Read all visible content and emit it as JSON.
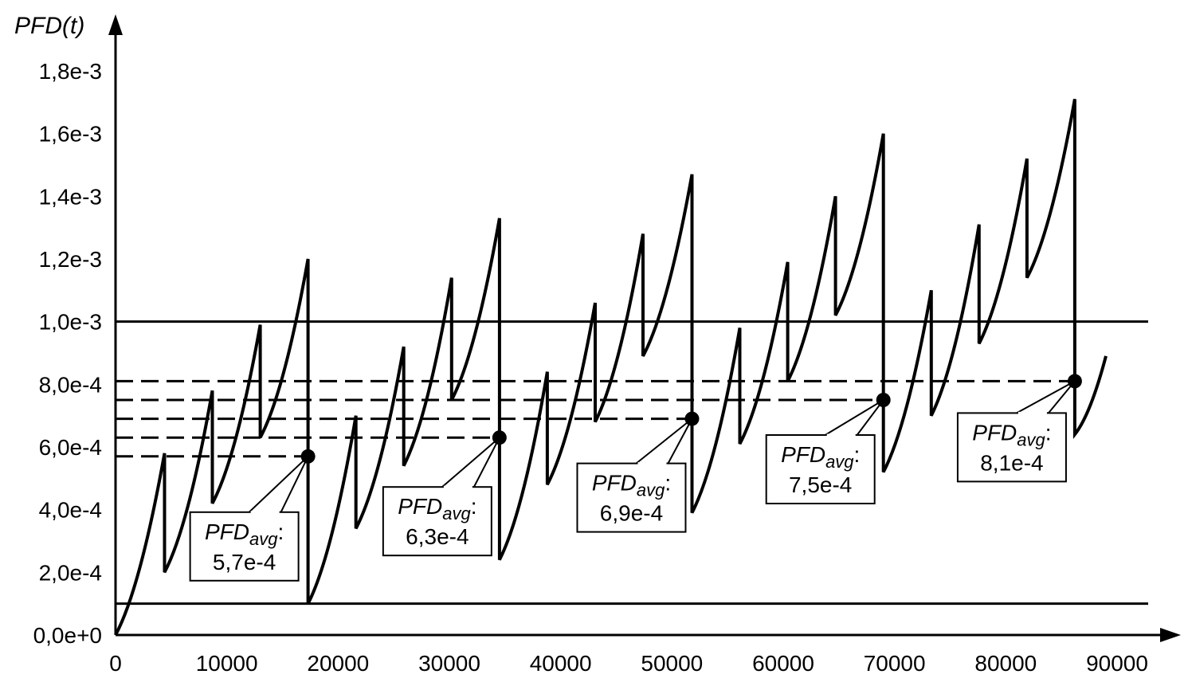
{
  "chart_data": {
    "type": "line",
    "title": "",
    "xlabel": "",
    "ylabel": "PFD(t)",
    "xlim": [
      0,
      90000
    ],
    "ylim": [
      0,
      0.0018
    ],
    "x_ticks": [
      {
        "value": 0,
        "label": "0"
      },
      {
        "value": 10000,
        "label": "10000"
      },
      {
        "value": 20000,
        "label": "20000"
      },
      {
        "value": 30000,
        "label": "30000"
      },
      {
        "value": 40000,
        "label": "40000"
      },
      {
        "value": 50000,
        "label": "50000"
      },
      {
        "value": 60000,
        "label": "60000"
      },
      {
        "value": 70000,
        "label": "70000"
      },
      {
        "value": 80000,
        "label": "80000"
      },
      {
        "value": 90000,
        "label": "90000"
      }
    ],
    "y_ticks": [
      {
        "value": 0,
        "label": "0,0e+0"
      },
      {
        "value": 0.0002,
        "label": "2,0e-4"
      },
      {
        "value": 0.0004,
        "label": "4,0e-4"
      },
      {
        "value": 0.0006,
        "label": "6,0e-4"
      },
      {
        "value": 0.0008,
        "label": "8,0e-4"
      },
      {
        "value": 0.001,
        "label": "1,0e-3"
      },
      {
        "value": 0.0012,
        "label": "1,2e-3"
      },
      {
        "value": 0.0014,
        "label": "1,4e-3"
      },
      {
        "value": 0.0016,
        "label": "1,6e-3"
      },
      {
        "value": 0.0018,
        "label": "1,8e-3"
      }
    ],
    "reference_lines": [
      {
        "y": 0.001,
        "style": "solid"
      },
      {
        "y": 0.0001,
        "style": "solid"
      }
    ],
    "series": [
      {
        "points": [
          [
            0,
            0
          ],
          [
            4400,
            0.00058
          ],
          [
            4400,
            0.0002
          ],
          [
            8700,
            0.00078
          ],
          [
            8700,
            0.00042
          ],
          [
            13000,
            0.00099
          ],
          [
            13000,
            0.00063
          ],
          [
            17300,
            0.0012
          ],
          [
            17300,
            0.0001
          ],
          [
            21600,
            0.0007
          ],
          [
            21600,
            0.00034
          ],
          [
            25900,
            0.00092
          ],
          [
            25900,
            0.00054
          ],
          [
            30200,
            0.00114
          ],
          [
            30200,
            0.00075
          ],
          [
            34500,
            0.00133
          ],
          [
            34500,
            0.00024
          ],
          [
            38800,
            0.00084
          ],
          [
            38800,
            0.00048
          ],
          [
            43100,
            0.00106
          ],
          [
            43100,
            0.00068
          ],
          [
            47400,
            0.00128
          ],
          [
            47400,
            0.00089
          ],
          [
            51800,
            0.00147
          ],
          [
            51800,
            0.00039
          ],
          [
            56100,
            0.00098
          ],
          [
            56100,
            0.00061
          ],
          [
            60400,
            0.00119
          ],
          [
            60400,
            0.00081
          ],
          [
            64700,
            0.0014
          ],
          [
            64700,
            0.00102
          ],
          [
            69000,
            0.0016
          ],
          [
            69000,
            0.00052
          ],
          [
            73300,
            0.0011
          ],
          [
            73300,
            0.0007
          ],
          [
            77600,
            0.00131
          ],
          [
            77600,
            0.00093
          ],
          [
            81900,
            0.00152
          ],
          [
            81900,
            0.00114
          ],
          [
            86200,
            0.00171
          ],
          [
            86200,
            0.00064
          ],
          [
            89000,
            0.00089
          ]
        ]
      }
    ],
    "pfd_avg": [
      {
        "x": 17300,
        "y": 0.00057,
        "label_main": "PFD",
        "label_sub": "avg",
        "label_suffix": ":",
        "value_label": "5,7e-4"
      },
      {
        "x": 34500,
        "y": 0.00063,
        "label_main": "PFD",
        "label_sub": "avg",
        "label_suffix": ":",
        "value_label": "6,3e-4"
      },
      {
        "x": 51800,
        "y": 0.00069,
        "label_main": "PFD",
        "label_sub": "avg",
        "label_suffix": ":",
        "value_label": "6,9e-4"
      },
      {
        "x": 69000,
        "y": 0.00075,
        "label_main": "PFD",
        "label_sub": "avg",
        "label_suffix": ":",
        "value_label": "7,5e-4"
      },
      {
        "x": 86200,
        "y": 0.00081,
        "label_main": "PFD",
        "label_sub": "avg",
        "label_suffix": ":",
        "value_label": "8,1e-4"
      }
    ],
    "grid": false,
    "legend": "none"
  }
}
